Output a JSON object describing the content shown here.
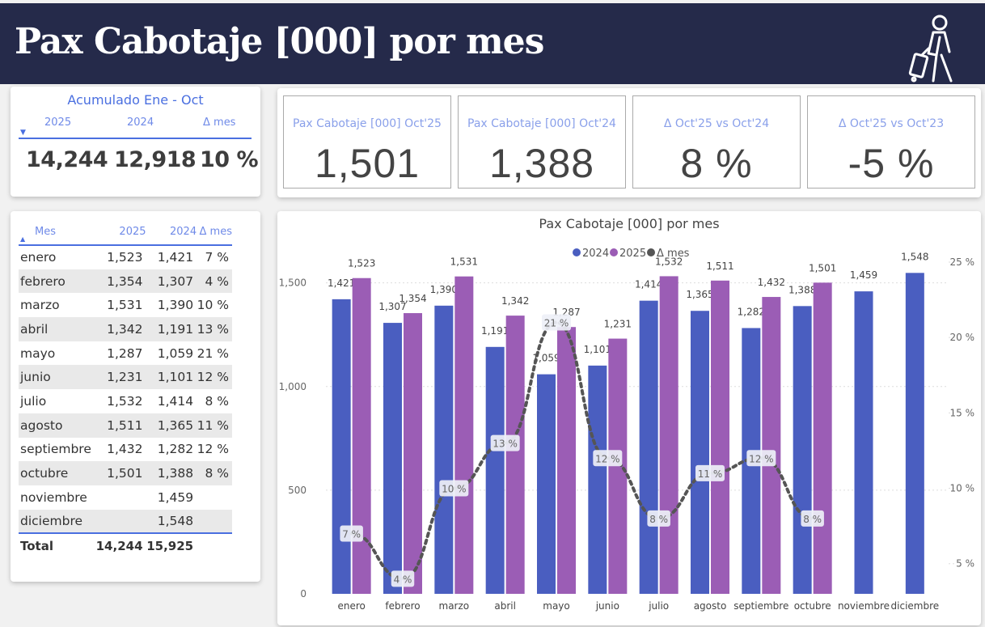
{
  "header": {
    "title": "Pax Cabotaje [000] por mes",
    "icon": "traveler-with-suitcase-icon"
  },
  "accumulated": {
    "title": "Acumulado Ene - Oct",
    "col_2025": "2025",
    "col_2024": "2024",
    "col_delta": "Δ mes",
    "val_2025": "14,244",
    "val_2024": "12,918",
    "val_delta": "10 %"
  },
  "kpis": [
    {
      "label": "Pax Cabotaje [000] Oct'25",
      "value": "1,501"
    },
    {
      "label": "Pax Cabotaje [000] Oct'24",
      "value": "1,388"
    },
    {
      "label": "Δ Oct'25 vs Oct'24",
      "value": "8 %"
    },
    {
      "label": "Δ Oct'25 vs Oct'23",
      "value": "-5 %"
    }
  ],
  "table": {
    "headers": [
      "Mes",
      "2025",
      "2024",
      "Δ mes"
    ],
    "rows": [
      [
        "enero",
        "1,523",
        "1,421",
        "7 %"
      ],
      [
        "febrero",
        "1,354",
        "1,307",
        "4 %"
      ],
      [
        "marzo",
        "1,531",
        "1,390",
        "10 %"
      ],
      [
        "abril",
        "1,342",
        "1,191",
        "13 %"
      ],
      [
        "mayo",
        "1,287",
        "1,059",
        "21 %"
      ],
      [
        "junio",
        "1,231",
        "1,101",
        "12 %"
      ],
      [
        "julio",
        "1,532",
        "1,414",
        "8 %"
      ],
      [
        "agosto",
        "1,511",
        "1,365",
        "11 %"
      ],
      [
        "septiembre",
        "1,432",
        "1,282",
        "12 %"
      ],
      [
        "octubre",
        "1,501",
        "1,388",
        "8 %"
      ],
      [
        "noviembre",
        "",
        "1,459",
        ""
      ],
      [
        "diciembre",
        "",
        "1,548",
        ""
      ]
    ],
    "total": [
      "Total",
      "14,244",
      "15,925",
      ""
    ]
  },
  "chart_data": {
    "type": "bar",
    "title": "Pax Cabotaje [000] por mes",
    "categories": [
      "enero",
      "febrero",
      "marzo",
      "abril",
      "mayo",
      "junio",
      "julio",
      "agosto",
      "septiembre",
      "octubre",
      "noviembre",
      "diciembre"
    ],
    "series": [
      {
        "name": "2024",
        "color": "#4a5ec0",
        "values": [
          1421,
          1307,
          1390,
          1191,
          1059,
          1101,
          1414,
          1365,
          1282,
          1388,
          1459,
          1548
        ]
      },
      {
        "name": "2025",
        "color": "#9b5db5",
        "values": [
          1523,
          1354,
          1531,
          1342,
          1287,
          1231,
          1532,
          1511,
          1432,
          1501,
          null,
          null
        ]
      }
    ],
    "line_series": {
      "name": "Δ mes",
      "color": "#555555",
      "axis": "right",
      "values": [
        7,
        4,
        10,
        13,
        21,
        12,
        8,
        11,
        12,
        8,
        null,
        null
      ]
    },
    "ylim_left": [
      0,
      1600
    ],
    "left_ticks": [
      "0",
      "500",
      "1,000",
      "1,500"
    ],
    "left_tick_values": [
      0,
      500,
      1000,
      1500
    ],
    "ylim_right": [
      3,
      25
    ],
    "right_ticks": [
      "5 %",
      "10 %",
      "15 %",
      "20 %",
      "25 %"
    ],
    "right_tick_values": [
      5,
      10,
      15,
      20,
      25
    ],
    "legend": "top-center"
  }
}
